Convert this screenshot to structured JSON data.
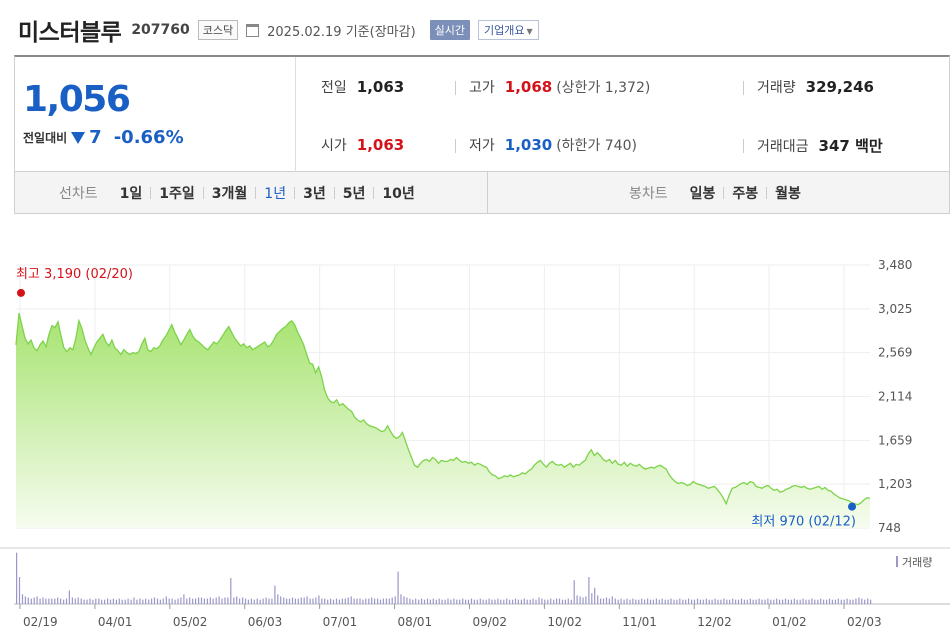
{
  "header": {
    "stock_name": "미스터블루",
    "stock_code": "207760",
    "market": "코스닥",
    "date_text": "2025.02.19 기준(장마감)",
    "realtime_label": "실시간",
    "overview_label": "기업개요"
  },
  "quote": {
    "price": "1,056",
    "change_label": "전일대비",
    "change": "7",
    "change_pct": "-0.66%",
    "prev_close_label": "전일",
    "prev_close": "1,063",
    "open_label": "시가",
    "open": "1,063",
    "high_label": "고가",
    "high": "1,068",
    "upper_limit": "(상한가 1,372)",
    "low_label": "저가",
    "low": "1,030",
    "lower_limit": "(하한가 740)",
    "volume_label": "거래량",
    "volume": "329,246",
    "value_label": "거래대금",
    "value": "347 백만"
  },
  "periods": {
    "line_label": "선차트",
    "line_items": [
      "1일",
      "1주일",
      "3개월",
      "1년",
      "3년",
      "5년",
      "10년"
    ],
    "active": "1년",
    "candle_label": "봉차트",
    "candle_items": [
      "일봉",
      "주봉",
      "월봉"
    ]
  },
  "chart_data": {
    "type": "area",
    "series": [
      {
        "values": [
          2650,
          2980,
          2850,
          2720,
          2660,
          2700,
          2620,
          2590,
          2650,
          2690,
          2630,
          2760,
          2850,
          2830,
          2890,
          2750,
          2620,
          2580,
          2620,
          2600,
          2720,
          2900,
          2820,
          2700,
          2620,
          2550,
          2620,
          2680,
          2720,
          2760,
          2680,
          2640,
          2700,
          2620,
          2590,
          2550,
          2600,
          2570,
          2550,
          2570,
          2560,
          2580,
          2660,
          2720,
          2600,
          2580,
          2620,
          2610,
          2640,
          2700,
          2740,
          2800,
          2860,
          2780,
          2720,
          2650,
          2700,
          2760,
          2810,
          2740,
          2700,
          2680,
          2650,
          2620,
          2600,
          2640,
          2680,
          2660,
          2700,
          2750,
          2800,
          2840,
          2780,
          2720,
          2680,
          2640,
          2660,
          2620,
          2640,
          2600,
          2620,
          2640,
          2660,
          2680,
          2630,
          2650,
          2700,
          2760,
          2790,
          2820,
          2840,
          2880,
          2900,
          2860,
          2780,
          2720,
          2650,
          2550,
          2460,
          2450,
          2360,
          2420,
          2320,
          2180,
          2100,
          2060,
          2050,
          2080,
          2020,
          2040,
          2010,
          1980,
          1960,
          1900,
          1870,
          1850,
          1870,
          1830,
          1810,
          1800,
          1790,
          1770,
          1750,
          1760,
          1810,
          1750,
          1700,
          1680,
          1700,
          1740,
          1650,
          1560,
          1480,
          1400,
          1380,
          1420,
          1450,
          1460,
          1440,
          1480,
          1460,
          1420,
          1450,
          1440,
          1440,
          1460,
          1450,
          1480,
          1450,
          1430,
          1440,
          1420,
          1430,
          1400,
          1420,
          1410,
          1390,
          1380,
          1330,
          1300,
          1290,
          1260,
          1270,
          1290,
          1280,
          1300,
          1280,
          1290,
          1300,
          1320,
          1310,
          1340,
          1360,
          1400,
          1430,
          1450,
          1410,
          1380,
          1420,
          1440,
          1410,
          1400,
          1410,
          1380,
          1400,
          1420,
          1380,
          1410,
          1400,
          1430,
          1450,
          1520,
          1560,
          1500,
          1530,
          1500,
          1460,
          1440,
          1460,
          1420,
          1450,
          1410,
          1400,
          1430,
          1390,
          1420,
          1400,
          1390,
          1410,
          1380,
          1360,
          1370,
          1380,
          1370,
          1390,
          1400,
          1380,
          1360,
          1300,
          1260,
          1230,
          1210,
          1220,
          1210,
          1190,
          1200,
          1230,
          1210,
          1200,
          1190,
          1180,
          1160,
          1170,
          1180,
          1150,
          1110,
          1060,
          1000,
          1090,
          1160,
          1170,
          1190,
          1210,
          1220,
          1200,
          1230,
          1220,
          1180,
          1170,
          1160,
          1180,
          1190,
          1160,
          1140,
          1150,
          1120,
          1130,
          1150,
          1160,
          1180,
          1190,
          1180,
          1170,
          1180,
          1160,
          1150,
          1160,
          1170,
          1180,
          1150,
          1170,
          1140,
          1130,
          1100,
          1080,
          1060,
          1050,
          1040,
          1030,
          1010,
          1000,
          990,
          1010,
          1040,
          1063,
          1056
        ]
      }
    ],
    "ylim": [
      748,
      3480
    ],
    "y_ticks": [
      "3,480",
      "3,025",
      "2,569",
      "2,114",
      "1,659",
      "1,203",
      "748"
    ],
    "x_ticks": [
      "02/19",
      "04/01",
      "05/02",
      "06/03",
      "07/01",
      "08/01",
      "09/02",
      "10/02",
      "11/01",
      "12/02",
      "01/02",
      "02/03"
    ],
    "max_annotation": "최고 3,190 (02/20)",
    "min_annotation": "최저 970 (02/12)",
    "volume_legend": "거래량",
    "volume": [
      0.95,
      0.5,
      0.18,
      0.14,
      0.12,
      0.1,
      0.12,
      0.14,
      0.1,
      0.12,
      0.1,
      0.1,
      0.1,
      0.1,
      0.12,
      0.1,
      0.08,
      0.1,
      0.25,
      0.12,
      0.1,
      0.12,
      0.1,
      0.08,
      0.08,
      0.1,
      0.08,
      0.1,
      0.1,
      0.08,
      0.08,
      0.1,
      0.08,
      0.1,
      0.08,
      0.1,
      0.08,
      0.08,
      0.1,
      0.08,
      0.12,
      0.08,
      0.1,
      0.08,
      0.1,
      0.08,
      0.1,
      0.12,
      0.1,
      0.08,
      0.1,
      0.14,
      0.1,
      0.1,
      0.08,
      0.1,
      0.12,
      0.18,
      0.1,
      0.12,
      0.1,
      0.1,
      0.12,
      0.12,
      0.1,
      0.1,
      0.12,
      0.1,
      0.12,
      0.14,
      0.1,
      0.12,
      0.12,
      0.48,
      0.12,
      0.14,
      0.1,
      0.12,
      0.1,
      0.08,
      0.1,
      0.08,
      0.1,
      0.08,
      0.1,
      0.12,
      0.1,
      0.1,
      0.34,
      0.18,
      0.14,
      0.12,
      0.1,
      0.1,
      0.12,
      0.1,
      0.1,
      0.12,
      0.12,
      0.14,
      0.1,
      0.1,
      0.12,
      0.16,
      0.1,
      0.1,
      0.08,
      0.1,
      0.08,
      0.1,
      0.08,
      0.1,
      0.1,
      0.12,
      0.14,
      0.1,
      0.1,
      0.1,
      0.08,
      0.1,
      0.1,
      0.12,
      0.1,
      0.1,
      0.08,
      0.1,
      0.1,
      0.1,
      0.12,
      0.14,
      0.6,
      0.18,
      0.14,
      0.12,
      0.1,
      0.08,
      0.1,
      0.08,
      0.1,
      0.08,
      0.1,
      0.08,
      0.1,
      0.08,
      0.1,
      0.08,
      0.08,
      0.1,
      0.08,
      0.1,
      0.08,
      0.08,
      0.1,
      0.08,
      0.08,
      0.1,
      0.08,
      0.08,
      0.1,
      0.08,
      0.08,
      0.1,
      0.08,
      0.08,
      0.1,
      0.08,
      0.08,
      0.1,
      0.08,
      0.08,
      0.1,
      0.08,
      0.08,
      0.1,
      0.08,
      0.08,
      0.1,
      0.08,
      0.12,
      0.1,
      0.08,
      0.08,
      0.1,
      0.08,
      0.1,
      0.1,
      0.08,
      0.08,
      0.1,
      0.08,
      0.44,
      0.16,
      0.14,
      0.12,
      0.14,
      0.5,
      0.2,
      0.3,
      0.16,
      0.1,
      0.1,
      0.12,
      0.1,
      0.14,
      0.1,
      0.08,
      0.1,
      0.08,
      0.1,
      0.08,
      0.1,
      0.08,
      0.08,
      0.1,
      0.08,
      0.1,
      0.08,
      0.08,
      0.1,
      0.08,
      0.1,
      0.08,
      0.08,
      0.1,
      0.08,
      0.08,
      0.1,
      0.08,
      0.08,
      0.1,
      0.08,
      0.08,
      0.1,
      0.08,
      0.08,
      0.1,
      0.08,
      0.08,
      0.1,
      0.08,
      0.08,
      0.1,
      0.08,
      0.08,
      0.1,
      0.08,
      0.08,
      0.1,
      0.08,
      0.08,
      0.1,
      0.08,
      0.08,
      0.1,
      0.08,
      0.08,
      0.1,
      0.08,
      0.08,
      0.1,
      0.08,
      0.08,
      0.1,
      0.08,
      0.08,
      0.1,
      0.08,
      0.08,
      0.1,
      0.08,
      0.08,
      0.1,
      0.08,
      0.08,
      0.1,
      0.08,
      0.08,
      0.1,
      0.08,
      0.08,
      0.1,
      0.08,
      0.08,
      0.1,
      0.08,
      0.08,
      0.1,
      0.12,
      0.1,
      0.08,
      0.1,
      0.08
    ]
  },
  "colors": {
    "up": "#d4121a",
    "down": "#1a5fc4",
    "area_line": "#7dd34a",
    "volume_bar": "#9a97c9"
  }
}
